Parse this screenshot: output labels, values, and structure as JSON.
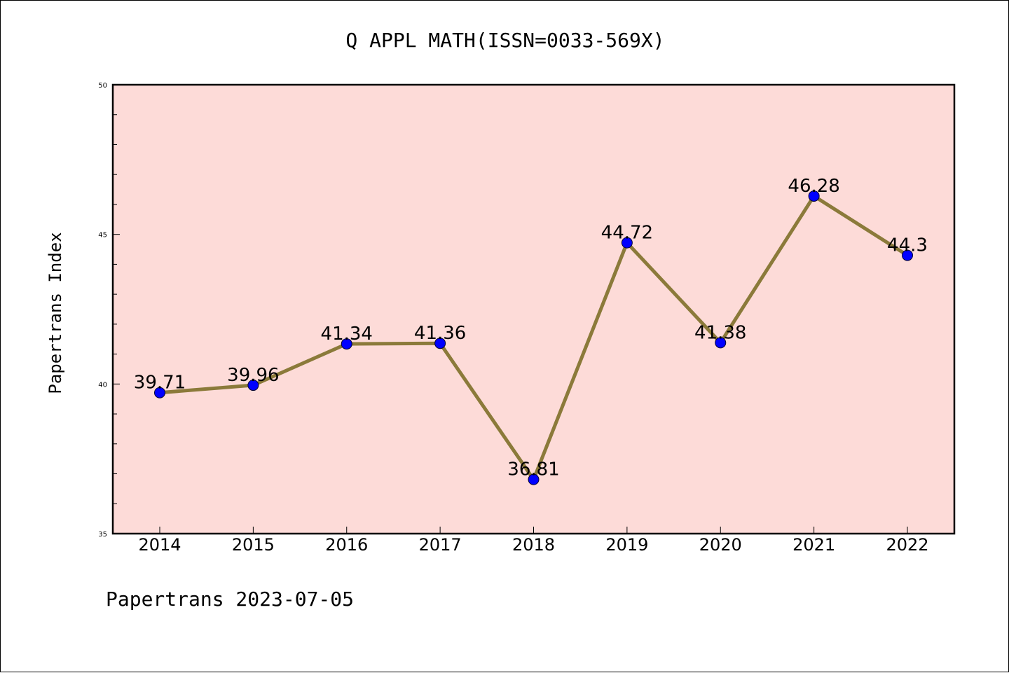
{
  "chart_data": {
    "type": "line",
    "title": "Q APPL MATH(ISSN=0033-569X)",
    "xlabel": "",
    "ylabel": "Papertrans Index",
    "categories": [
      "2014",
      "2015",
      "2016",
      "2017",
      "2018",
      "2019",
      "2020",
      "2021",
      "2022"
    ],
    "values": [
      39.71,
      39.96,
      41.34,
      41.36,
      36.81,
      44.72,
      41.38,
      46.28,
      44.3
    ],
    "data_labels": [
      "39.71",
      "39.96",
      "41.34",
      "41.36",
      "36.81",
      "44.72",
      "41.38",
      "46.28",
      "44.3"
    ],
    "ylim": [
      35,
      50
    ],
    "y_major_ticks": [
      "35",
      "40",
      "45",
      "50"
    ],
    "y_minor_step": 1,
    "grid": false,
    "legend": "none",
    "footer": "Papertrans 2023-07-05"
  },
  "colors": {
    "plot_background": "#fddbd8",
    "line": "#8b7a3a",
    "marker": "#0000ff",
    "axis": "#000000"
  }
}
